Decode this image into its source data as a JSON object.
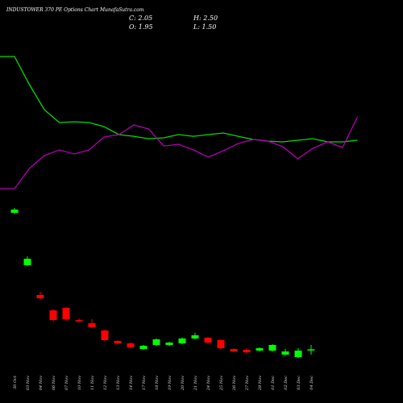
{
  "chart_data": {
    "type": "candlestick",
    "title": "INDUSTOWER 370  PE Options  Chart MunafaSutra.com",
    "ohlc_labels": [
      "C: 2.05",
      "H: 2.50",
      "O: 1.95",
      "L: 1.50"
    ],
    "categories": [
      "30 Oct",
      "03 Nov",
      "04 Nov",
      "06 Nov",
      "07 Nov",
      "10 Nov",
      "11 Nov",
      "12 Nov",
      "13 Nov",
      "14 Nov",
      "17 Nov",
      "18 Nov",
      "19 Nov",
      "20 Nov",
      "21 Nov",
      "24 Nov",
      "25 Nov",
      "26 Nov",
      "27 Nov",
      "28 Nov",
      "01 Dec",
      "02 Dec",
      "03 Dec",
      "04 Dec"
    ],
    "open": [
      16.17,
      10.75,
      7.67,
      6.08,
      6.33,
      5.08,
      4.75,
      4.0,
      2.92,
      2.67,
      2.08,
      2.5,
      2.5,
      2.67,
      3.17,
      3.25,
      3.0,
      2.08,
      2.0,
      1.92,
      1.92,
      1.5,
      1.25,
      1.95
    ],
    "high": [
      16.67,
      11.67,
      8.0,
      6.17,
      6.42,
      5.25,
      5.17,
      4.08,
      3.0,
      2.75,
      2.5,
      3.17,
      2.83,
      3.25,
      3.75,
      3.33,
      3.08,
      2.17,
      2.17,
      2.25,
      2.58,
      2.08,
      2.17,
      2.5
    ],
    "low": [
      16.08,
      10.67,
      7.25,
      4.92,
      5.0,
      4.83,
      4.25,
      2.92,
      2.58,
      2.17,
      2.0,
      2.42,
      2.42,
      2.58,
      3.08,
      2.58,
      2.08,
      1.75,
      1.58,
      1.83,
      1.83,
      1.42,
      1.17,
      1.5
    ],
    "close": [
      16.5,
      11.42,
      7.33,
      5.08,
      5.17,
      5.0,
      4.33,
      3.0,
      2.67,
      2.25,
      2.42,
      3.08,
      2.75,
      3.17,
      3.5,
      2.75,
      2.17,
      1.83,
      1.75,
      2.17,
      2.5,
      1.83,
      1.92,
      2.05
    ],
    "up_color": "#00ff00",
    "down_color": "#ff0000",
    "lines": [
      {
        "color": "#00dd00",
        "values": [
          32.33,
          29.42,
          26.83,
          25.5,
          25.58,
          25.5,
          25.08,
          24.25,
          24.08,
          23.83,
          23.92,
          24.25,
          24.08,
          24.25,
          24.42,
          24.08,
          23.75,
          23.58,
          23.5,
          23.67,
          23.83,
          23.5,
          23.5,
          23.67
        ]
      },
      {
        "color": "#b000b0",
        "values": [
          18.67,
          20.75,
          22.08,
          22.67,
          22.25,
          22.67,
          24.0,
          24.25,
          25.25,
          24.83,
          23.08,
          23.25,
          22.67,
          21.92,
          22.58,
          23.33,
          23.75,
          23.58,
          23.0,
          21.75,
          22.83,
          23.5,
          22.92,
          26.08
        ]
      }
    ],
    "ylim": [
      -3.5,
      38.17
    ]
  }
}
